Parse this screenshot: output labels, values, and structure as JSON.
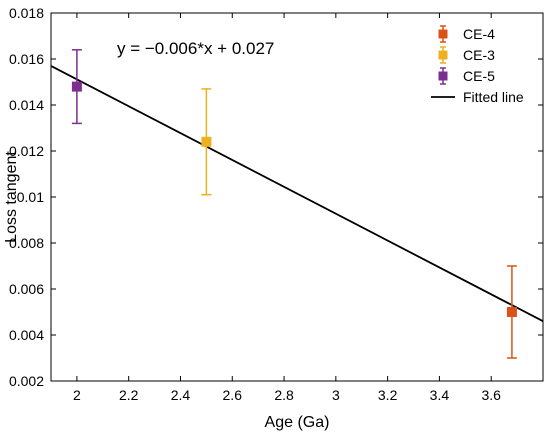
{
  "chart_data": {
    "type": "scatter",
    "xlabel": "Age (Ga)",
    "ylabel": "Loss tangent",
    "xlim": [
      1.9,
      3.8
    ],
    "ylim": [
      0.002,
      0.018
    ],
    "x_ticks": [
      "2",
      "2.2",
      "2.4",
      "2.6",
      "2.8",
      "3",
      "3.2",
      "3.4",
      "3.6"
    ],
    "y_ticks": [
      "0.002",
      "0.004",
      "0.006",
      "0.008",
      "0.01",
      "0.012",
      "0.014",
      "0.016",
      "0.018"
    ],
    "grid": false,
    "legend_position": "top-right",
    "series": [
      {
        "name": "CE-4",
        "color": "#d95319",
        "x": 3.68,
        "y": 0.005,
        "y_low": 0.003,
        "y_high": 0.007,
        "marker": "square"
      },
      {
        "name": "CE-3",
        "color": "#edb120",
        "x": 2.5,
        "y": 0.0124,
        "y_low": 0.0101,
        "y_high": 0.0147,
        "marker": "square"
      },
      {
        "name": "CE-5",
        "color": "#7e2f8e",
        "x": 2.0,
        "y": 0.0148,
        "y_low": 0.0132,
        "y_high": 0.0164,
        "marker": "square"
      }
    ],
    "fitted_line": {
      "name": "Fitted line",
      "color": "#000000",
      "equation": "y = −0.006*x + 0.027",
      "x": [
        1.9,
        3.8
      ],
      "y": [
        0.0157,
        0.0046
      ]
    }
  }
}
